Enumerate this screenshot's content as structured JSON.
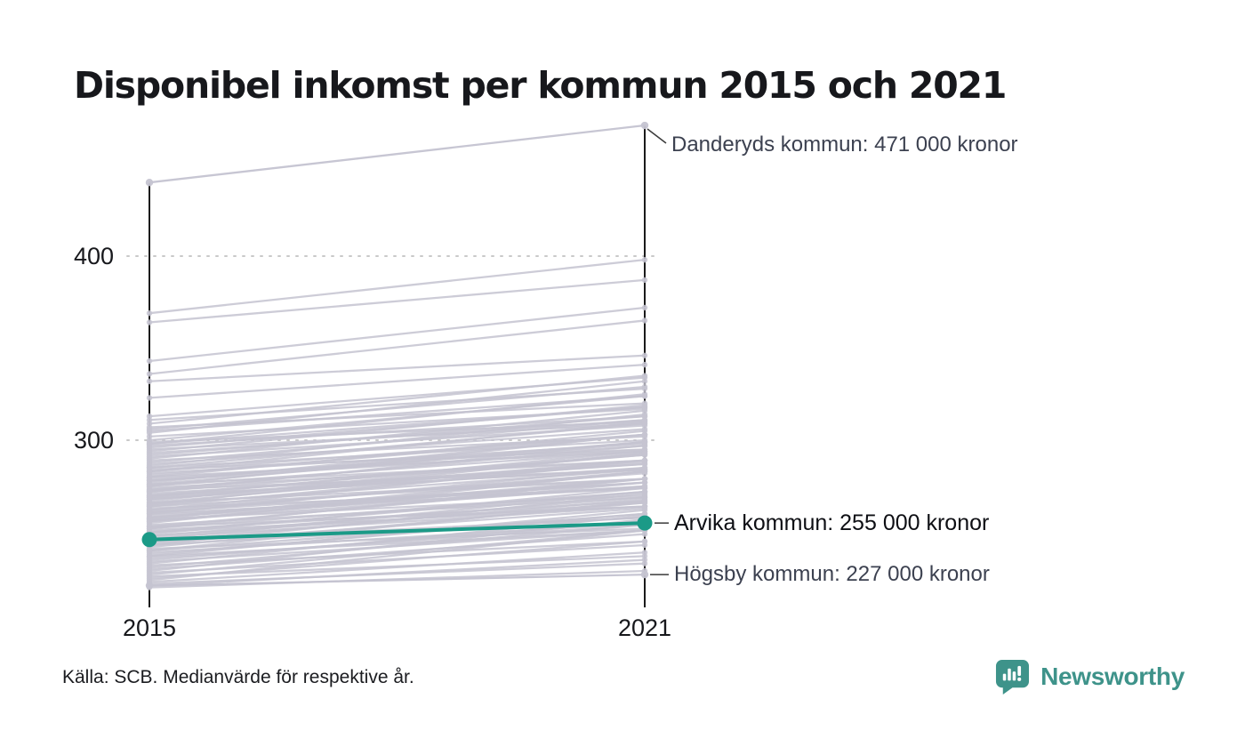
{
  "title": "Disponibel inkomst per kommun 2015 och 2021",
  "source_note": "Källa: SCB. Medianvärde för respektive år.",
  "brand": {
    "name": "Newsworthy",
    "color": "#3e938a"
  },
  "chart_data": {
    "type": "slope",
    "x_categories": [
      "2015",
      "2021"
    ],
    "y_ticks": [
      400,
      300
    ],
    "y_tick_labels": [
      "400",
      "300"
    ],
    "grid": "dotted-horizontal",
    "line_color": "#c5c4d1",
    "axis_color": "#1a1a1a",
    "highlight": {
      "name": "Arvika kommun",
      "label": "Arvika kommun: 255 000 kronor",
      "values": [
        246,
        255
      ],
      "color": "#1b9a87"
    },
    "annotations": [
      {
        "name": "Danderyds kommun",
        "label": "Danderyds kommun: 471 000 kronor",
        "values": [
          440,
          471
        ]
      },
      {
        "name": "Högsby kommun",
        "label": "Högsby kommun: 227 000 kronor",
        "values": [
          221,
          227
        ]
      }
    ],
    "background_series": [
      [
        369,
        398
      ],
      [
        364,
        387
      ],
      [
        343,
        372
      ],
      [
        336,
        365
      ],
      [
        332,
        346
      ],
      [
        323,
        341
      ],
      [
        313,
        334
      ],
      [
        311,
        328
      ],
      [
        309,
        335
      ],
      [
        307,
        320
      ],
      [
        306,
        329
      ],
      [
        305,
        324
      ],
      [
        304,
        332
      ],
      [
        302,
        317
      ],
      [
        300,
        324
      ],
      [
        299,
        310
      ],
      [
        298,
        318
      ],
      [
        298,
        325
      ],
      [
        297,
        313
      ],
      [
        296,
        318
      ],
      [
        295,
        309
      ],
      [
        294,
        319
      ],
      [
        293,
        311
      ],
      [
        292,
        313
      ],
      [
        291,
        308
      ],
      [
        290,
        316
      ],
      [
        289,
        302
      ],
      [
        288,
        311
      ],
      [
        287,
        306
      ],
      [
        286,
        314
      ],
      [
        285,
        300
      ],
      [
        285,
        309
      ],
      [
        284,
        295
      ],
      [
        283,
        303
      ],
      [
        283,
        310
      ],
      [
        282,
        298
      ],
      [
        281,
        303
      ],
      [
        280,
        294
      ],
      [
        280,
        305
      ],
      [
        279,
        297
      ],
      [
        278,
        299
      ],
      [
        278,
        295
      ],
      [
        277,
        303
      ],
      [
        276,
        289
      ],
      [
        276,
        299
      ],
      [
        275,
        294
      ],
      [
        275,
        303
      ],
      [
        274,
        289
      ],
      [
        273,
        297
      ],
      [
        273,
        284
      ],
      [
        272,
        292
      ],
      [
        272,
        299
      ],
      [
        271,
        287
      ],
      [
        270,
        292
      ],
      [
        270,
        284
      ],
      [
        269,
        294
      ],
      [
        269,
        287
      ],
      [
        268,
        289
      ],
      [
        268,
        285
      ],
      [
        267,
        293
      ],
      [
        266,
        279
      ],
      [
        266,
        289
      ],
      [
        265,
        284
      ],
      [
        265,
        293
      ],
      [
        264,
        279
      ],
      [
        264,
        288
      ],
      [
        263,
        274
      ],
      [
        262,
        282
      ],
      [
        262,
        289
      ],
      [
        261,
        277
      ],
      [
        261,
        283
      ],
      [
        260,
        274
      ],
      [
        260,
        285
      ],
      [
        259,
        277
      ],
      [
        258,
        279
      ],
      [
        258,
        275
      ],
      [
        257,
        283
      ],
      [
        257,
        270
      ],
      [
        256,
        279
      ],
      [
        256,
        275
      ],
      [
        255,
        283
      ],
      [
        254,
        269
      ],
      [
        253,
        277
      ],
      [
        253,
        264
      ],
      [
        252,
        272
      ],
      [
        252,
        279
      ],
      [
        251,
        267
      ],
      [
        250,
        272
      ],
      [
        250,
        264
      ],
      [
        249,
        274
      ],
      [
        248,
        266
      ],
      [
        248,
        269
      ],
      [
        247,
        264
      ],
      [
        246,
        272
      ],
      [
        245,
        258
      ],
      [
        245,
        268
      ],
      [
        244,
        263
      ],
      [
        243,
        271
      ],
      [
        243,
        258
      ],
      [
        242,
        266
      ],
      [
        241,
        252
      ],
      [
        240,
        260
      ],
      [
        240,
        267
      ],
      [
        239,
        255
      ],
      [
        238,
        260
      ],
      [
        237,
        251
      ],
      [
        237,
        262
      ],
      [
        236,
        254
      ],
      [
        235,
        256
      ],
      [
        234,
        251
      ],
      [
        233,
        259
      ],
      [
        232,
        245
      ],
      [
        231,
        254
      ],
      [
        230,
        249
      ],
      [
        229,
        257
      ],
      [
        228,
        243
      ],
      [
        227,
        251
      ],
      [
        226,
        237
      ],
      [
        225,
        245
      ],
      [
        224,
        251
      ],
      [
        223,
        239
      ],
      [
        222,
        233
      ],
      [
        221,
        235
      ],
      [
        220,
        229
      ]
    ]
  }
}
